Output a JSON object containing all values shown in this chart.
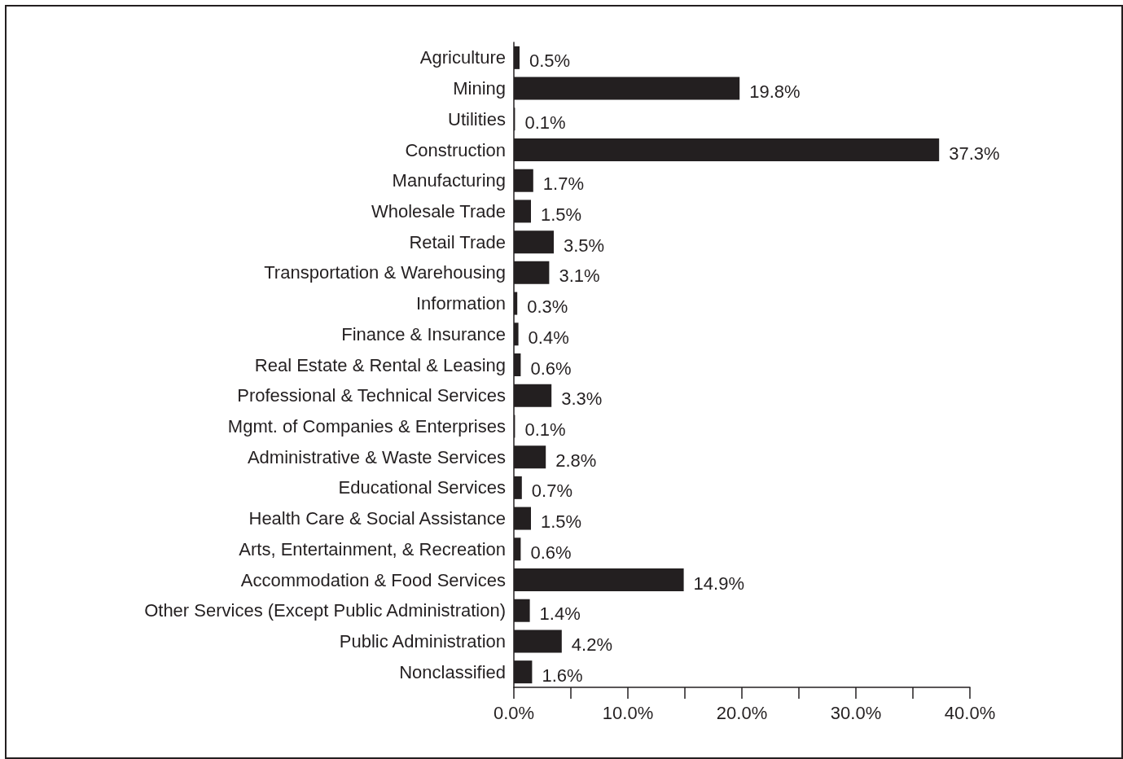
{
  "chart_data": {
    "type": "bar",
    "orientation": "horizontal",
    "categories": [
      "Agriculture",
      "Mining",
      "Utilities",
      "Construction",
      "Manufacturing",
      "Wholesale Trade",
      "Retail Trade",
      "Transportation & Warehousing",
      "Information",
      "Finance & Insurance",
      "Real Estate & Rental & Leasing",
      "Professional & Technical Services",
      "Mgmt. of Companies & Enterprises",
      "Administrative & Waste Services",
      "Educational Services",
      "Health Care & Social Assistance",
      "Arts, Entertainment, & Recreation",
      "Accommodation & Food Services",
      "Other Services (Except Public Administration)",
      "Public Administration",
      "Nonclassified"
    ],
    "values": [
      0.5,
      19.8,
      0.1,
      37.3,
      1.7,
      1.5,
      3.5,
      3.1,
      0.3,
      0.4,
      0.6,
      3.3,
      0.1,
      2.8,
      0.7,
      1.5,
      0.6,
      14.9,
      1.4,
      4.2,
      1.6
    ],
    "value_labels": [
      "0.5%",
      "19.8%",
      "0.1%",
      "37.3%",
      "1.7%",
      "1.5%",
      "3.5%",
      "3.1%",
      "0.3%",
      "0.4%",
      "0.6%",
      "3.3%",
      "0.1%",
      "2.8%",
      "0.7%",
      "1.5%",
      "0.6%",
      "14.9%",
      "1.4%",
      "4.2%",
      "1.6%"
    ],
    "color": "#231f20",
    "xlim": [
      0,
      40
    ],
    "xticks": [
      {
        "value": 0,
        "label": "0.0%"
      },
      {
        "value": 5,
        "label": null
      },
      {
        "value": 10,
        "label": "10.0%"
      },
      {
        "value": 15,
        "label": null
      },
      {
        "value": 20,
        "label": "20.0%"
      },
      {
        "value": 25,
        "label": null
      },
      {
        "value": 30,
        "label": "30.0%"
      },
      {
        "value": 35,
        "label": null
      },
      {
        "value": 40,
        "label": "40.0%"
      }
    ],
    "grid": false
  }
}
